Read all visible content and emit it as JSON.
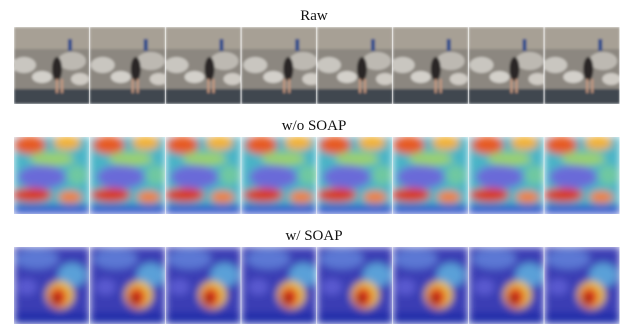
{
  "figure": {
    "rows": [
      {
        "label": "Raw"
      },
      {
        "label": "w/o SOAP"
      },
      {
        "label": "w/ SOAP"
      }
    ]
  }
}
